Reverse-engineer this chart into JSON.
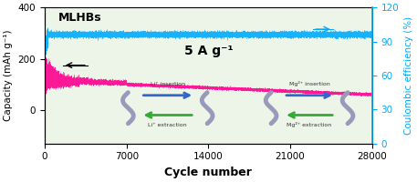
{
  "xlabel": "Cycle number",
  "ylabel_left": "Capacity (mAh g⁻¹)",
  "ylabel_right": "Coulombic efficiency (%)",
  "xlim": [
    0,
    28000
  ],
  "ylim_left": [
    -130,
    400
  ],
  "ylim_right": [
    0,
    120
  ],
  "xticks": [
    0,
    7000,
    14000,
    21000,
    28000
  ],
  "yticks_left": [
    0,
    200,
    400
  ],
  "yticks_right": [
    0,
    30,
    60,
    90,
    120
  ],
  "label_mlhbs": "MLHBs",
  "annotation": "5 A g⁻¹",
  "bg_color": "#edf5e8",
  "capacity_color": "#ff0090",
  "coulombic_color": "#00aaff",
  "arrow_color_blue": "#3377cc",
  "arrow_color_green": "#33aa33",
  "snake_color": "#8899cc",
  "text_color": "#333333",
  "li_insertion_text": "Li⁺ insertion",
  "li_extraction_text": "Li⁺ extraction",
  "mg_insertion_text": "Mg²⁺ insertion",
  "mg_extraction_text": "Mg²⁺ extraction"
}
